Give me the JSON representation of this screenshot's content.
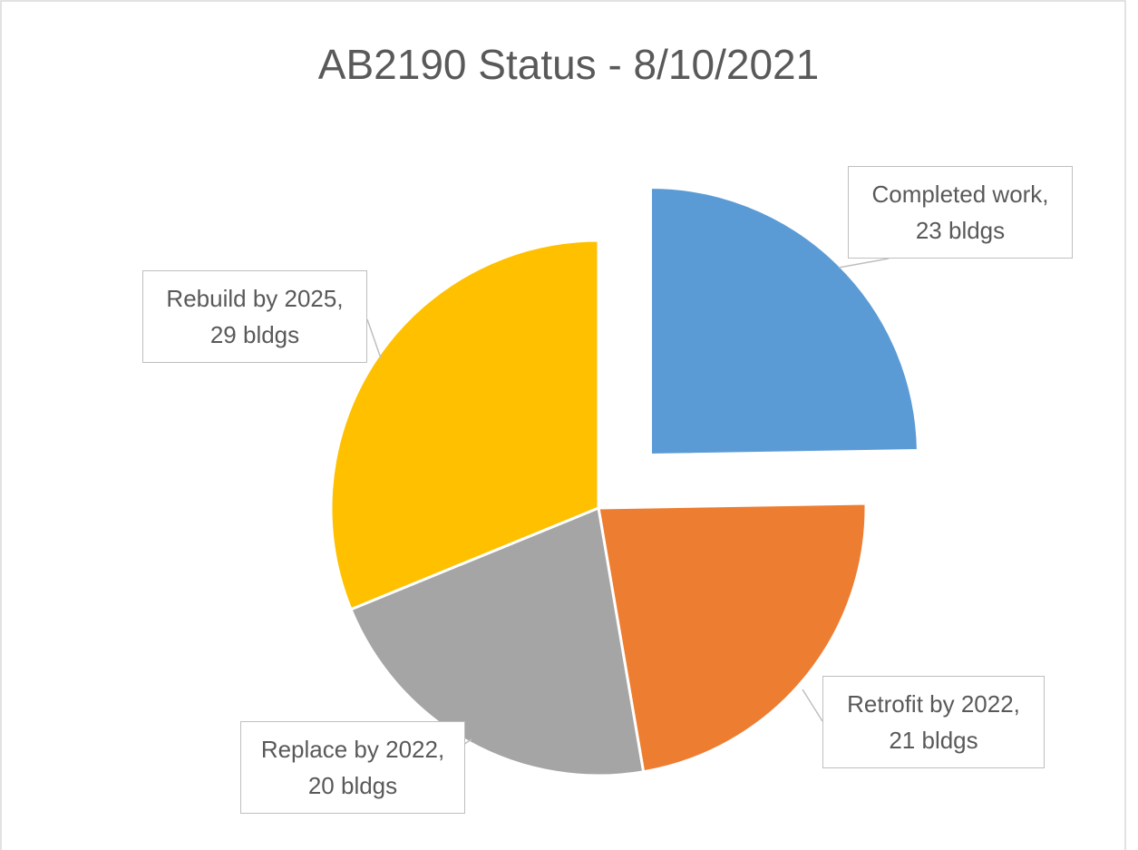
{
  "chart_data": {
    "type": "pie",
    "title": "AB2190 Status - 8/10/2021",
    "values": [
      23,
      21,
      20,
      29
    ],
    "value_labels": [
      "Completed work, 23 bldgs",
      "Retrofit by 2022, 21 bldgs",
      "Replace by 2022, 20 bldgs",
      "Rebuild by 2025, 29 bldgs"
    ],
    "colors": [
      "#5b9bd5",
      "#ed7d31",
      "#a5a5a5",
      "#ffc000"
    ]
  }
}
